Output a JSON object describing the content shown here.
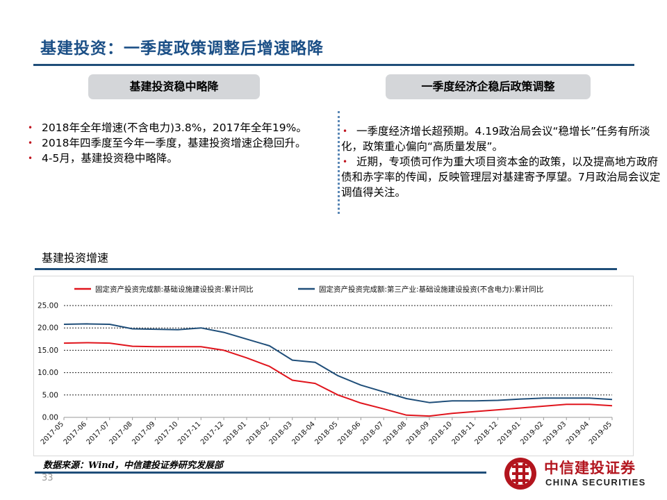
{
  "header": {
    "title": "基建投资：一季度政策调整后增速略降"
  },
  "left_panel": {
    "heading": "基建投资稳中略降",
    "bullets": [
      "2018年全年增速(不含电力)3.8%，2017年全年19%。",
      "2018年四季度至今年一季度，基建投资增速企稳回升。",
      "4-5月，基建投资稳中略降。"
    ]
  },
  "right_panel": {
    "heading": "一季度经济企稳后政策调整",
    "bullets": [
      "一季度经济增长超预期。4.19政治局会议“稳增长”任务有所淡化，政策重心偏向“高质量发展”。",
      "近期，专项债可作为重大项目资本金的政策，以及提高地方政府债和赤字率的传闻，反映管理层对基建寄予厚望。7月政治局会议定调值得关注。"
    ]
  },
  "chart_section": {
    "title": "基建投资增速"
  },
  "chart_data": {
    "type": "line",
    "categories": [
      "2017-05",
      "2017-06",
      "2017-07",
      "2017-08",
      "2017-09",
      "2017-10",
      "2017-11",
      "2017-12",
      "2018-01",
      "2018-02",
      "2018-03",
      "2018-04",
      "2018-05",
      "2018-06",
      "2018-07",
      "2018-08",
      "2018-09",
      "2018-10",
      "2018-11",
      "2018-12",
      "2019-01",
      "2019-02",
      "2019-03",
      "2019-04",
      "2019-05"
    ],
    "series": [
      {
        "name": "固定资产投资完成额:基础设施建设投资:累计同比",
        "color": "#e0141c",
        "values": [
          16.6,
          16.7,
          16.6,
          15.9,
          15.8,
          15.8,
          15.8,
          15.0,
          13.3,
          11.4,
          8.3,
          7.6,
          5.0,
          3.2,
          1.9,
          0.5,
          0.3,
          0.9,
          1.3,
          1.7,
          2.1,
          2.5,
          2.9,
          2.9,
          2.6
        ]
      },
      {
        "name": "固定资产投资完成额:第三产业:基础设施建设投资(不含电力):累计同比",
        "color": "#1f4e79",
        "values": [
          20.8,
          20.9,
          20.8,
          19.8,
          19.7,
          19.6,
          20.0,
          19.0,
          17.5,
          16.0,
          12.8,
          12.3,
          9.3,
          7.2,
          5.7,
          4.2,
          3.3,
          3.7,
          3.7,
          3.8,
          4.1,
          4.3,
          4.3,
          4.3,
          4.0
        ]
      }
    ],
    "yticks": [
      "0.00",
      "5.00",
      "10.00",
      "15.00",
      "20.00",
      "25.00"
    ],
    "ylim": [
      0,
      25
    ],
    "grid": true,
    "legend_position": "top"
  },
  "footer": {
    "source_prefix": "数据来源：",
    "source_label": "Wind，中信建投证券研究发展部",
    "page_number": "33"
  },
  "logo": {
    "chinese": "中信建投证券",
    "english": "CHINA SECURITIES",
    "brand_color": "#b3151e"
  },
  "colors": {
    "title": "#1b4f86",
    "rule": "#1f4e79",
    "pill": "#d4d6d9",
    "bullet": "#c0151f"
  }
}
